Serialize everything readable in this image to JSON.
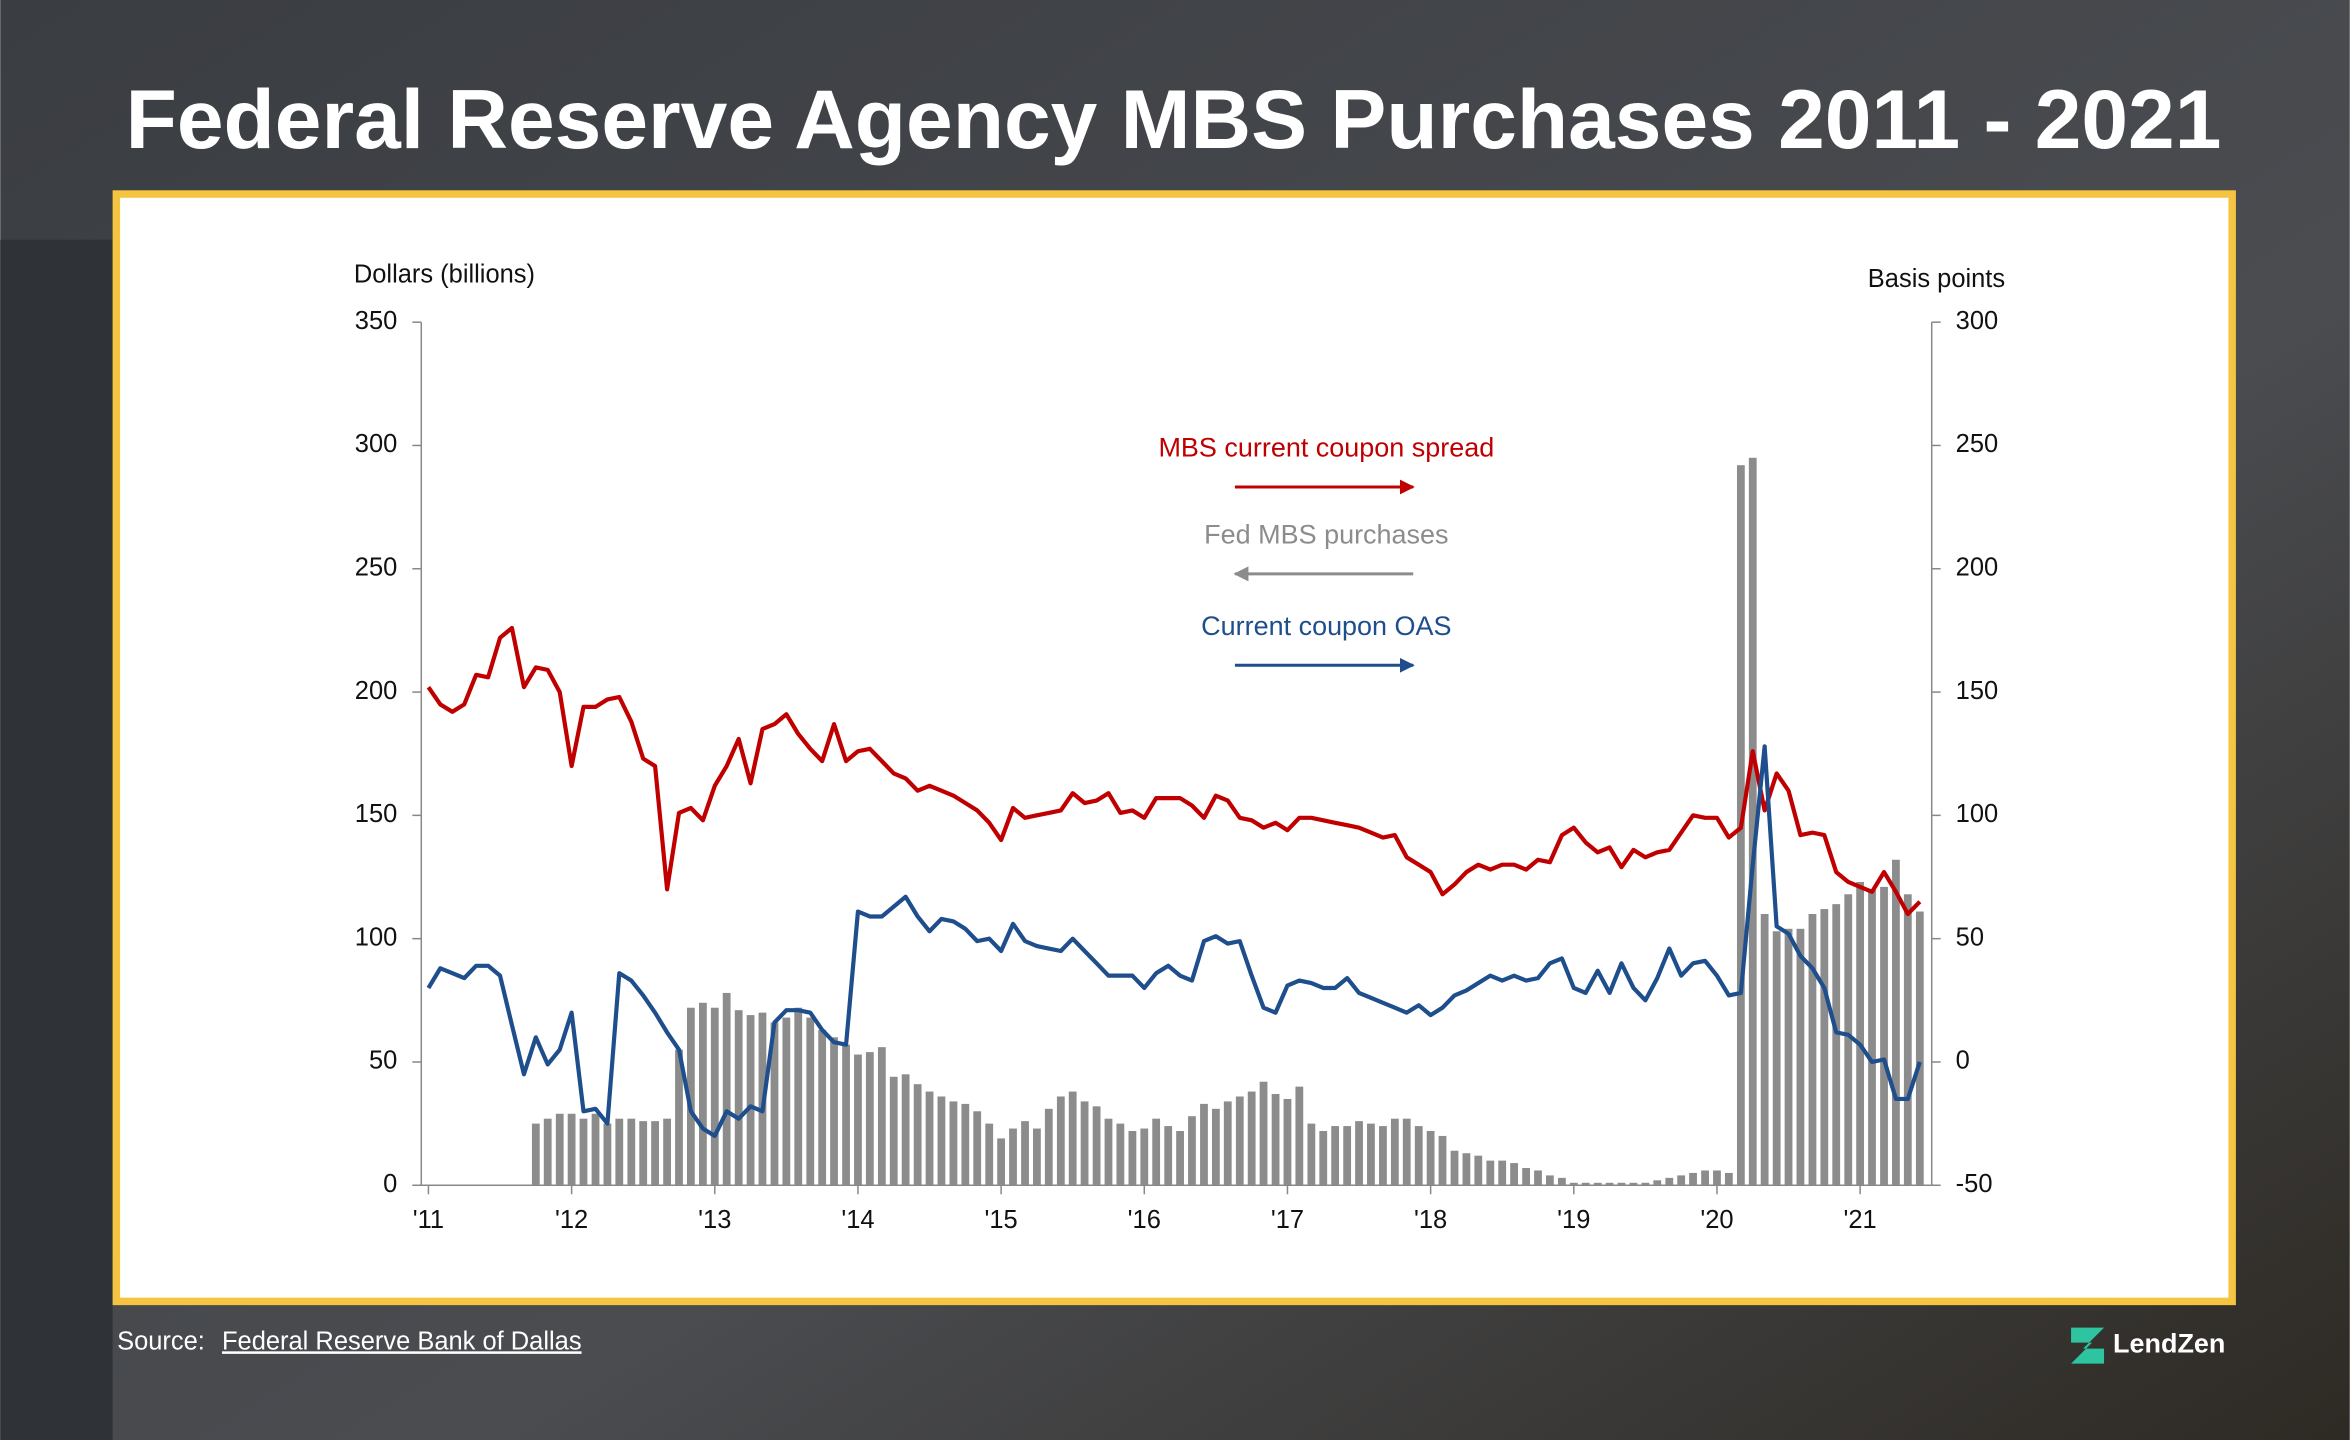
{
  "header": {
    "title": "Federal Reserve Agency MBS Purchases 2011 - 2021"
  },
  "chart_data": {
    "type": "combo",
    "ylabel": "Dollars (billions)",
    "y2label": "Basis points",
    "x": [
      2011,
      2011.083,
      2011.167,
      2011.25,
      2011.333,
      2011.417,
      2011.5,
      2011.583,
      2011.667,
      2011.75,
      2011.833,
      2011.917,
      2012,
      2012.083,
      2012.167,
      2012.25,
      2012.333,
      2012.417,
      2012.5,
      2012.583,
      2012.667,
      2012.75,
      2012.833,
      2012.917,
      2013,
      2013.083,
      2013.167,
      2013.25,
      2013.333,
      2013.417,
      2013.5,
      2013.583,
      2013.667,
      2013.75,
      2013.833,
      2013.917,
      2014,
      2014.083,
      2014.167,
      2014.25,
      2014.333,
      2014.417,
      2014.5,
      2014.583,
      2014.667,
      2014.75,
      2014.833,
      2014.917,
      2015,
      2015.083,
      2015.167,
      2015.25,
      2015.333,
      2015.417,
      2015.5,
      2015.583,
      2015.667,
      2015.75,
      2015.833,
      2015.917,
      2016,
      2016.083,
      2016.167,
      2016.25,
      2016.333,
      2016.417,
      2016.5,
      2016.583,
      2016.667,
      2016.75,
      2016.833,
      2016.917,
      2017,
      2017.083,
      2017.167,
      2017.25,
      2017.333,
      2017.417,
      2017.5,
      2017.583,
      2017.667,
      2017.75,
      2017.833,
      2017.917,
      2018,
      2018.083,
      2018.167,
      2018.25,
      2018.333,
      2018.417,
      2018.5,
      2018.583,
      2018.667,
      2018.75,
      2018.833,
      2018.917,
      2019,
      2019.083,
      2019.167,
      2019.25,
      2019.333,
      2019.417,
      2019.5,
      2019.583,
      2019.667,
      2019.75,
      2019.833,
      2019.917,
      2020,
      2020.083,
      2020.167,
      2020.25,
      2020.333,
      2020.417,
      2020.5,
      2020.583,
      2020.667,
      2020.75,
      2020.833,
      2020.917,
      2021,
      2021.083,
      2021.167,
      2021.25,
      2021.333,
      2021.417
    ],
    "series": [
      {
        "name": "MBS current coupon spread",
        "type": "line",
        "axis": "y2",
        "color": "#c00000",
        "values": [
          152,
          145,
          142,
          145,
          157,
          156,
          172,
          176,
          152,
          160,
          159,
          150,
          120,
          144,
          144,
          147,
          148,
          138,
          123,
          120,
          70,
          101,
          103,
          98,
          112,
          120,
          131,
          113,
          135,
          137,
          141,
          133,
          127,
          122,
          137,
          122,
          126,
          127,
          122,
          117,
          115,
          110,
          112,
          110,
          108,
          105,
          102,
          97,
          90,
          103,
          99,
          100,
          101,
          102,
          109,
          105,
          106,
          109,
          101,
          102,
          99,
          107,
          107,
          107,
          104,
          99,
          108,
          106,
          99,
          98,
          95,
          97,
          94,
          99,
          99,
          98,
          97,
          96,
          95,
          93,
          91,
          92,
          83,
          80,
          77,
          68,
          72,
          77,
          80,
          78,
          80,
          80,
          78,
          82,
          81,
          92,
          95,
          89,
          85,
          87,
          79,
          86,
          83,
          85,
          86,
          93,
          100,
          99,
          99,
          91,
          95,
          126,
          102,
          117,
          110,
          92,
          93,
          92,
          77,
          73,
          71,
          69,
          77,
          69,
          60,
          65
        ]
      },
      {
        "name": "Fed MBS purchases",
        "type": "bar",
        "axis": "y",
        "color": "#8c8c8c",
        "values": [
          null,
          null,
          null,
          null,
          null,
          null,
          null,
          null,
          null,
          25,
          27,
          29,
          29,
          27,
          29,
          25,
          27,
          27,
          26,
          26,
          27,
          55,
          72,
          74,
          72,
          78,
          71,
          69,
          70,
          66,
          68,
          72,
          68,
          63,
          60,
          57,
          53,
          54,
          56,
          44,
          45,
          41,
          38,
          36,
          34,
          33,
          30,
          25,
          19,
          23,
          26,
          23,
          31,
          36,
          38,
          34,
          32,
          27,
          25,
          22,
          23,
          27,
          24,
          22,
          28,
          33,
          31,
          34,
          36,
          38,
          42,
          37,
          35,
          40,
          25,
          22,
          24,
          24,
          26,
          25,
          24,
          27,
          27,
          24,
          22,
          20,
          14,
          13,
          12,
          10,
          10,
          9,
          7,
          6,
          4,
          3,
          1,
          1,
          1,
          1,
          1,
          1,
          1,
          2,
          3,
          4,
          5,
          6,
          6,
          5,
          292,
          295,
          110,
          103,
          104,
          104,
          110,
          112,
          114,
          118,
          123,
          120,
          121,
          132,
          118,
          111
        ]
      },
      {
        "name": "Current coupon OAS",
        "type": "line",
        "axis": "y2",
        "color": "#1f4e8c",
        "values": [
          30,
          38,
          36,
          34,
          39,
          39,
          35,
          15,
          -5,
          10,
          -1,
          5,
          20,
          -20,
          -19,
          -25,
          36,
          33,
          27,
          20,
          12,
          5,
          -20,
          -27,
          -30,
          -20,
          -23,
          -18,
          -20,
          16,
          21,
          21,
          20,
          13,
          8,
          7,
          61,
          59,
          59,
          63,
          67,
          59,
          53,
          58,
          57,
          54,
          49,
          50,
          45,
          56,
          49,
          47,
          46,
          45,
          50,
          45,
          40,
          35,
          35,
          35,
          30,
          36,
          39,
          35,
          33,
          49,
          51,
          48,
          49,
          35,
          22,
          20,
          31,
          33,
          32,
          30,
          30,
          34,
          28,
          26,
          24,
          22,
          20,
          23,
          19,
          22,
          27,
          29,
          32,
          35,
          33,
          35,
          33,
          34,
          40,
          42,
          30,
          28,
          37,
          28,
          40,
          30,
          25,
          34,
          46,
          35,
          40,
          41,
          35,
          27,
          28,
          80,
          128,
          55,
          52,
          43,
          38,
          30,
          12,
          11,
          7,
          0,
          1,
          -15,
          -15,
          0
        ]
      }
    ],
    "xlim": [
      2010.95,
      2021.5
    ],
    "xticks": [
      {
        "value": 2011,
        "label": "'11"
      },
      {
        "value": 2012,
        "label": "'12"
      },
      {
        "value": 2013,
        "label": "'13"
      },
      {
        "value": 2014,
        "label": "'14"
      },
      {
        "value": 2015,
        "label": "'15"
      },
      {
        "value": 2016,
        "label": "'16"
      },
      {
        "value": 2017,
        "label": "'17"
      },
      {
        "value": 2018,
        "label": "'18"
      },
      {
        "value": 2019,
        "label": "'19"
      },
      {
        "value": 2020,
        "label": "'20"
      },
      {
        "value": 2021,
        "label": "'21"
      }
    ],
    "ylim": [
      0,
      350
    ],
    "yticks": [
      0,
      50,
      100,
      150,
      200,
      250,
      300,
      350
    ],
    "y2lim": [
      -50,
      300
    ],
    "y2ticks": [
      -50,
      0,
      50,
      100,
      150,
      200,
      250,
      300
    ]
  },
  "footer": {
    "source_prefix": "Source:",
    "source_link": "Federal Reserve Bank of Dallas",
    "brand": "LendZen"
  }
}
